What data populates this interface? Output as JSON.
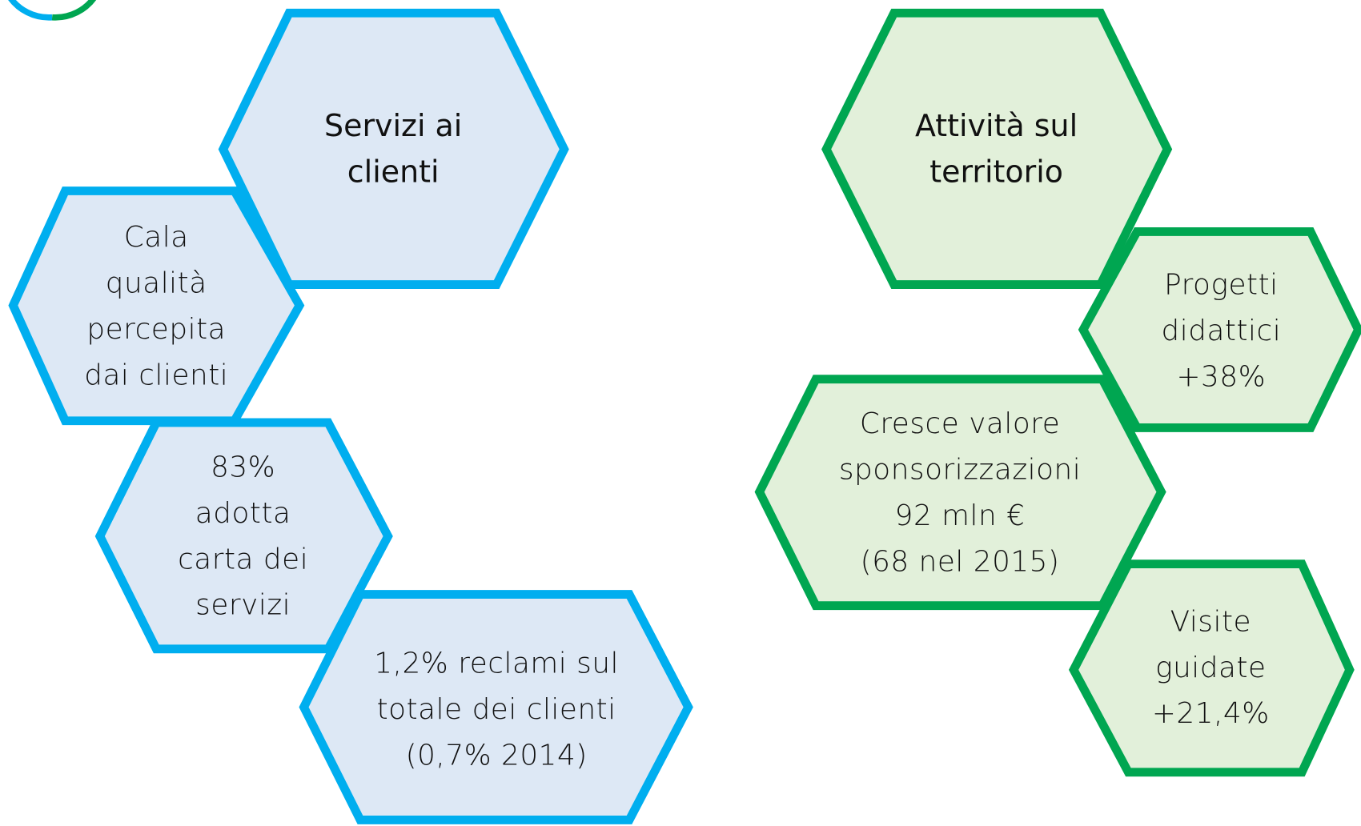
{
  "hexagons": [
    {
      "lines": [
        "Servizi ai",
        "clienti"
      ]
    },
    {
      "lines": [
        "Cala",
        "qualità",
        "percepita",
        "dai clienti"
      ]
    },
    {
      "lines": [
        "83%",
        "adotta",
        "carta dei",
        "servizi"
      ]
    },
    {
      "lines": [
        "1,2% reclami sul",
        "totale dei clienti",
        "(0,7% 2014)"
      ]
    },
    {
      "lines": [
        "Attività sul",
        "territorio"
      ]
    },
    {
      "lines": [
        "Progetti",
        "didattici",
        "+38%"
      ]
    },
    {
      "lines": [
        "Cresce valore",
        "sponsorizzazioni",
        "92 mln €",
        "(68 nel 2015)"
      ]
    },
    {
      "lines": [
        "Visite",
        "guidate",
        "+21,4%"
      ]
    }
  ]
}
